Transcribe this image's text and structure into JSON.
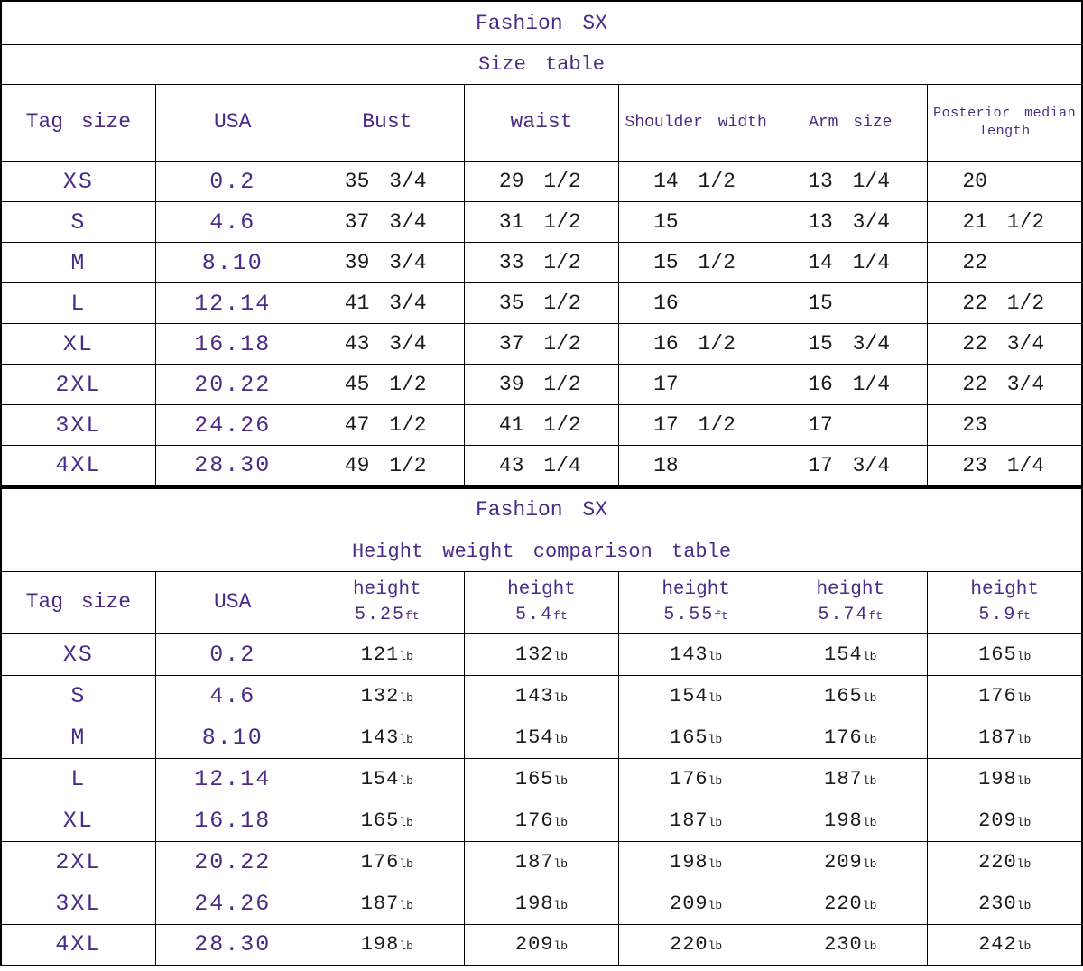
{
  "colors": {
    "accent": "#4b2b87",
    "ink": "#1b1b1b",
    "grid": "#000000",
    "background": "#ffffff"
  },
  "chart_data": [
    {
      "type": "table",
      "title": "Fashion SX",
      "subtitle": "Size table",
      "columns": [
        "Tag size",
        "USA",
        "Bust",
        "waist",
        "Shoulder width",
        "Arm size",
        "Posterior median length"
      ],
      "rows": [
        {
          "tag": "XS",
          "usa": "0.2",
          "values": [
            "35 3/4",
            "29 1/2",
            "14 1/2",
            "13 1/4",
            "20"
          ]
        },
        {
          "tag": "S",
          "usa": "4.6",
          "values": [
            "37 3/4",
            "31 1/2",
            "15",
            "13 3/4",
            "21 1/2"
          ]
        },
        {
          "tag": "M",
          "usa": "8.10",
          "values": [
            "39 3/4",
            "33 1/2",
            "15 1/2",
            "14 1/4",
            "22"
          ]
        },
        {
          "tag": "L",
          "usa": "12.14",
          "values": [
            "41 3/4",
            "35 1/2",
            "16",
            "15",
            "22 1/2"
          ]
        },
        {
          "tag": "XL",
          "usa": "16.18",
          "values": [
            "43 3/4",
            "37 1/2",
            "16 1/2",
            "15 3/4",
            "22 3/4"
          ]
        },
        {
          "tag": "2XL",
          "usa": "20.22",
          "values": [
            "45 1/2",
            "39 1/2",
            "17",
            "16 1/4",
            "22 3/4"
          ]
        },
        {
          "tag": "3XL",
          "usa": "24.26",
          "values": [
            "47 1/2",
            "41 1/2",
            "17 1/2",
            "17",
            "23"
          ]
        },
        {
          "tag": "4XL",
          "usa": "28.30",
          "values": [
            "49 1/2",
            "43 1/4",
            "18",
            "17 3/4",
            "23 1/4"
          ]
        }
      ]
    },
    {
      "type": "table",
      "title": "Fashion SX",
      "subtitle": "Height weight comparison table",
      "columns": [
        {
          "label": "Tag size"
        },
        {
          "label": "USA"
        },
        {
          "label": "height",
          "value": "5.25",
          "unit": "ft"
        },
        {
          "label": "height",
          "value": "5.4",
          "unit": "ft"
        },
        {
          "label": "height",
          "value": "5.55",
          "unit": "ft"
        },
        {
          "label": "height",
          "value": "5.74",
          "unit": "ft"
        },
        {
          "label": "height",
          "value": "5.9",
          "unit": "ft"
        }
      ],
      "weight_unit": "lb",
      "rows": [
        {
          "tag": "XS",
          "usa": "0.2",
          "weights": [
            "121",
            "132",
            "143",
            "154",
            "165"
          ]
        },
        {
          "tag": "S",
          "usa": "4.6",
          "weights": [
            "132",
            "143",
            "154",
            "165",
            "176"
          ]
        },
        {
          "tag": "M",
          "usa": "8.10",
          "weights": [
            "143",
            "154",
            "165",
            "176",
            "187"
          ]
        },
        {
          "tag": "L",
          "usa": "12.14",
          "weights": [
            "154",
            "165",
            "176",
            "187",
            "198"
          ]
        },
        {
          "tag": "XL",
          "usa": "16.18",
          "weights": [
            "165",
            "176",
            "187",
            "198",
            "209"
          ]
        },
        {
          "tag": "2XL",
          "usa": "20.22",
          "weights": [
            "176",
            "187",
            "198",
            "209",
            "220"
          ]
        },
        {
          "tag": "3XL",
          "usa": "24.26",
          "weights": [
            "187",
            "198",
            "209",
            "220",
            "230"
          ]
        },
        {
          "tag": "4XL",
          "usa": "28.30",
          "weights": [
            "198",
            "209",
            "220",
            "230",
            "242"
          ]
        }
      ]
    }
  ]
}
